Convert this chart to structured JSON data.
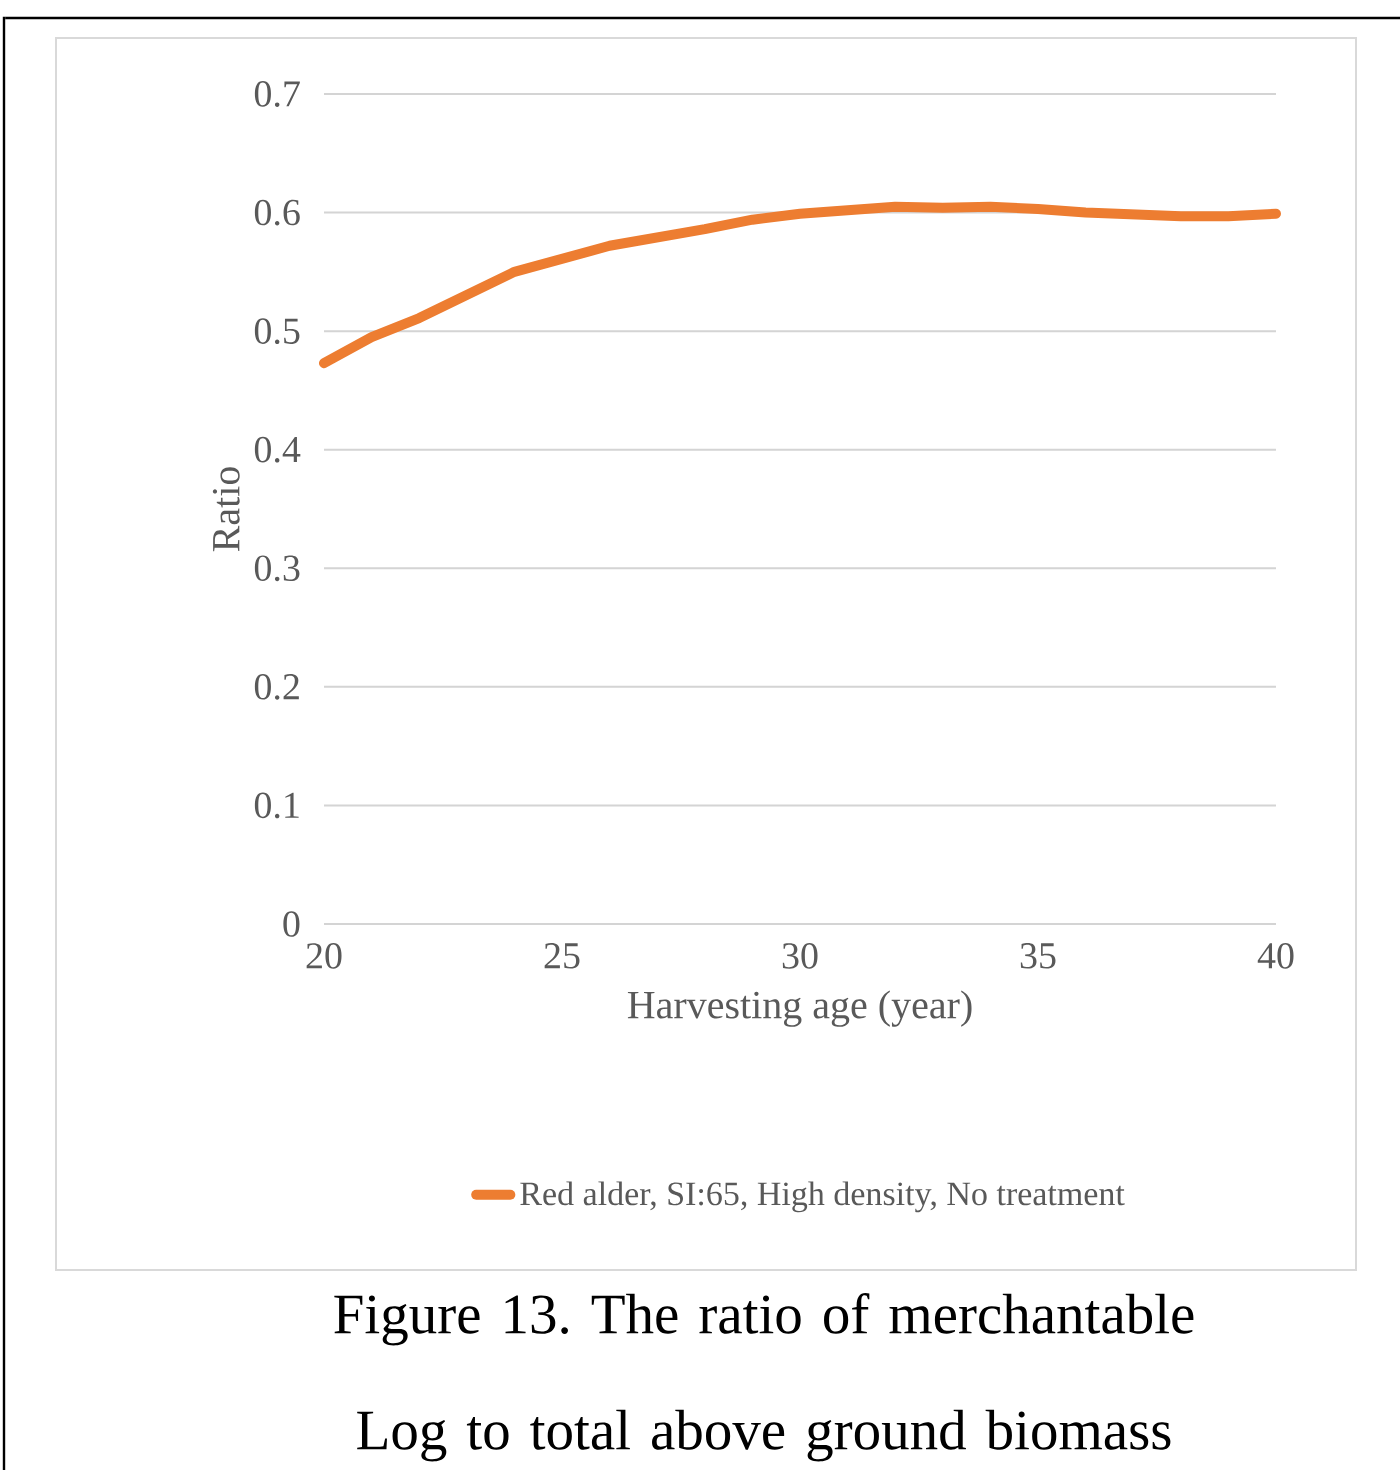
{
  "chart_data": {
    "type": "line",
    "xlabel": "Harvesting age (year)",
    "ylabel": "Ratio",
    "annotations": [
      "Figure 13. The ratio of merchantable Log to total above ground biomass"
    ],
    "x": [
      20,
      21,
      22,
      24,
      26,
      28,
      29,
      30,
      32,
      33,
      34,
      35,
      36,
      38,
      39,
      40
    ],
    "series": [
      {
        "name": "Red alder, SI:65, High density, No treatment",
        "color": "#ed7d31",
        "values": [
          0.473,
          0.495,
          0.511,
          0.55,
          0.572,
          0.586,
          0.594,
          0.599,
          0.605,
          0.604,
          0.605,
          0.603,
          0.6,
          0.597,
          0.597,
          0.599
        ]
      }
    ],
    "xlim": [
      20,
      40
    ],
    "xticks": [
      20,
      25,
      30,
      35,
      40
    ],
    "ylim": [
      0,
      0.7
    ],
    "yticks": [
      0,
      0.1,
      0.2,
      0.3,
      0.4,
      0.5,
      0.6,
      0.7
    ],
    "grid": "y",
    "legend": "bottom",
    "marker": "none",
    "line_style": "solid"
  }
}
